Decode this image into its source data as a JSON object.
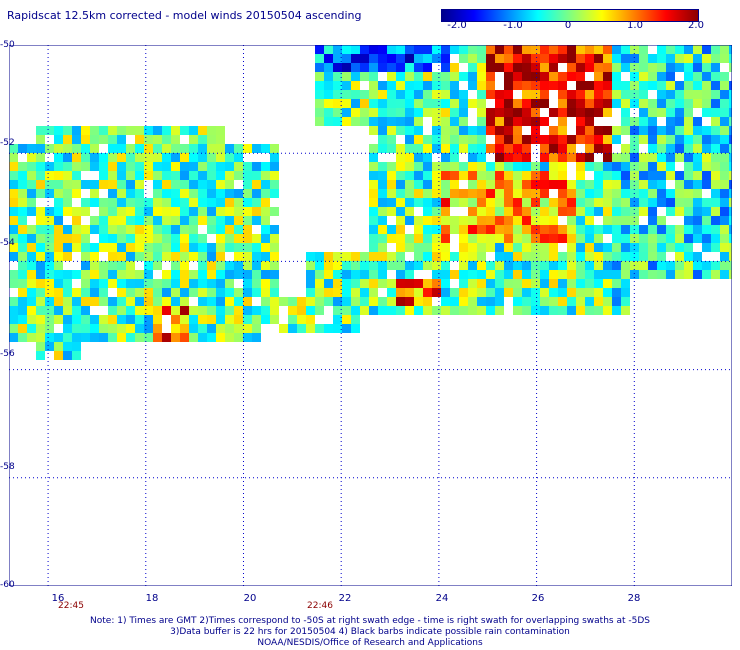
{
  "title": "Rapidscat 12.5km corrected - model winds 20150504 ascending",
  "colorbar": {
    "min": -2.0,
    "max": 2.0,
    "ticks": [
      {
        "value": -2.0,
        "label": "-2.0"
      },
      {
        "value": -1.0,
        "label": "-1.0"
      },
      {
        "value": 0,
        "label": "0"
      },
      {
        "value": 1.0,
        "label": "1.0"
      },
      {
        "value": 2.0,
        "label": "2.0"
      }
    ],
    "colors": [
      "#00008b",
      "#0000ff",
      "#0080ff",
      "#00ffff",
      "#80ff80",
      "#ffff00",
      "#ff8000",
      "#ff0000",
      "#8b0000"
    ]
  },
  "map": {
    "lon_range": [
      15.2,
      30.0
    ],
    "lat_range": [
      -60,
      -50
    ],
    "lat_labels": [
      "-50",
      "-52",
      "-54",
      "-56",
      "-58",
      "-60"
    ],
    "lon_labels": [
      "16",
      "18",
      "20",
      "22",
      "24",
      "26",
      "28"
    ],
    "time_labels": [
      {
        "lon": 16.3,
        "text": "22:45"
      },
      {
        "lon": 21.5,
        "text": "22:46"
      }
    ],
    "grid_color": "#0000cd",
    "background": "#ffffff"
  },
  "notes": [
    "Note: 1) Times are GMT 2)Times correspond to -50S at right swath edge - time is right swath for overlapping swaths at -5DS",
    "3)Data buffer is 22 hrs for 20150504 4) Black barbs indicate possible rain contamination",
    "NOAA/NESDIS/Office of Research and Applications"
  ]
}
